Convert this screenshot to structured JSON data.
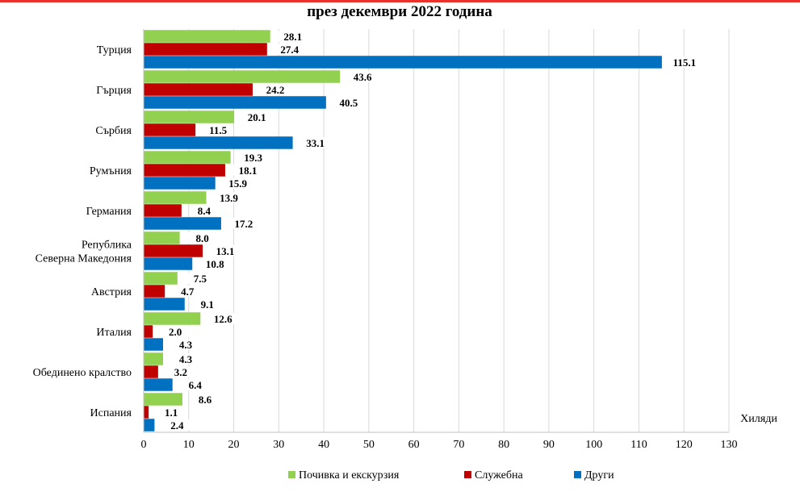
{
  "chart_data": {
    "type": "bar",
    "orientation": "horizontal",
    "title": "през декември 2022 година",
    "unit_label": "Хиляди",
    "categories": [
      "Турция",
      "Гърция",
      "Сърбия",
      "Румъния",
      "Германия",
      "Република Северна Македония",
      "Австрия",
      "Италия",
      "Обединено кралство",
      "Испания"
    ],
    "category_lines": [
      [
        "Турция"
      ],
      [
        "Гърция"
      ],
      [
        "Сърбия"
      ],
      [
        "Румъния"
      ],
      [
        "Германия"
      ],
      [
        "Република",
        "Северна Македония"
      ],
      [
        "Австрия"
      ],
      [
        "Италия"
      ],
      [
        "Обединено кралство"
      ],
      [
        "Испания"
      ]
    ],
    "series": [
      {
        "name": "Почивка и екскурзия",
        "color": "#92d050",
        "values": [
          28.1,
          43.6,
          20.1,
          19.3,
          13.9,
          8.0,
          7.5,
          12.6,
          4.3,
          8.6
        ]
      },
      {
        "name": "Служебна",
        "color": "#c00000",
        "values": [
          27.4,
          24.2,
          11.5,
          18.1,
          8.4,
          13.1,
          4.7,
          2.0,
          3.2,
          1.1
        ]
      },
      {
        "name": "Други",
        "color": "#0070c0",
        "values": [
          115.1,
          40.5,
          33.1,
          15.9,
          17.2,
          10.8,
          9.1,
          4.3,
          6.4,
          2.4
        ]
      }
    ],
    "xlim": [
      0,
      130
    ],
    "xticks": [
      0,
      10,
      20,
      30,
      40,
      50,
      60,
      70,
      80,
      90,
      100,
      110,
      120,
      130
    ],
    "grid": true,
    "legend_position": "bottom"
  }
}
